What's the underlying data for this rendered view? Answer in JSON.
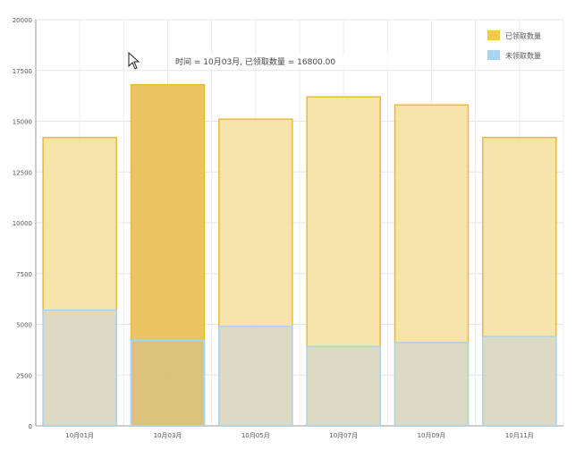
{
  "chart_data": {
    "type": "bar",
    "stacked": false,
    "overlapping": true,
    "categories": [
      "10月01月",
      "10月03月",
      "10月05月",
      "10月07月",
      "10月09月",
      "10月11月"
    ],
    "series": [
      {
        "name": "已领取数量",
        "color": "#f2c94c",
        "values": [
          14200,
          16800,
          15100,
          16200,
          15800,
          14200
        ]
      },
      {
        "name": "未领取数量",
        "color": "#a8d4f0",
        "values": [
          5700,
          4200,
          4900,
          3900,
          4100,
          4400
        ]
      }
    ],
    "ylim": [
      0,
      20000
    ],
    "yticks": [
      "0",
      "2500",
      "5000",
      "7500",
      "10000",
      "12500",
      "15000",
      "17500",
      "20000"
    ],
    "grid": true,
    "legend": "top-right",
    "highlight_index": 1
  },
  "tooltip": {
    "text": "时间 = 10月03月, 已领取数量 = 16800.00"
  }
}
